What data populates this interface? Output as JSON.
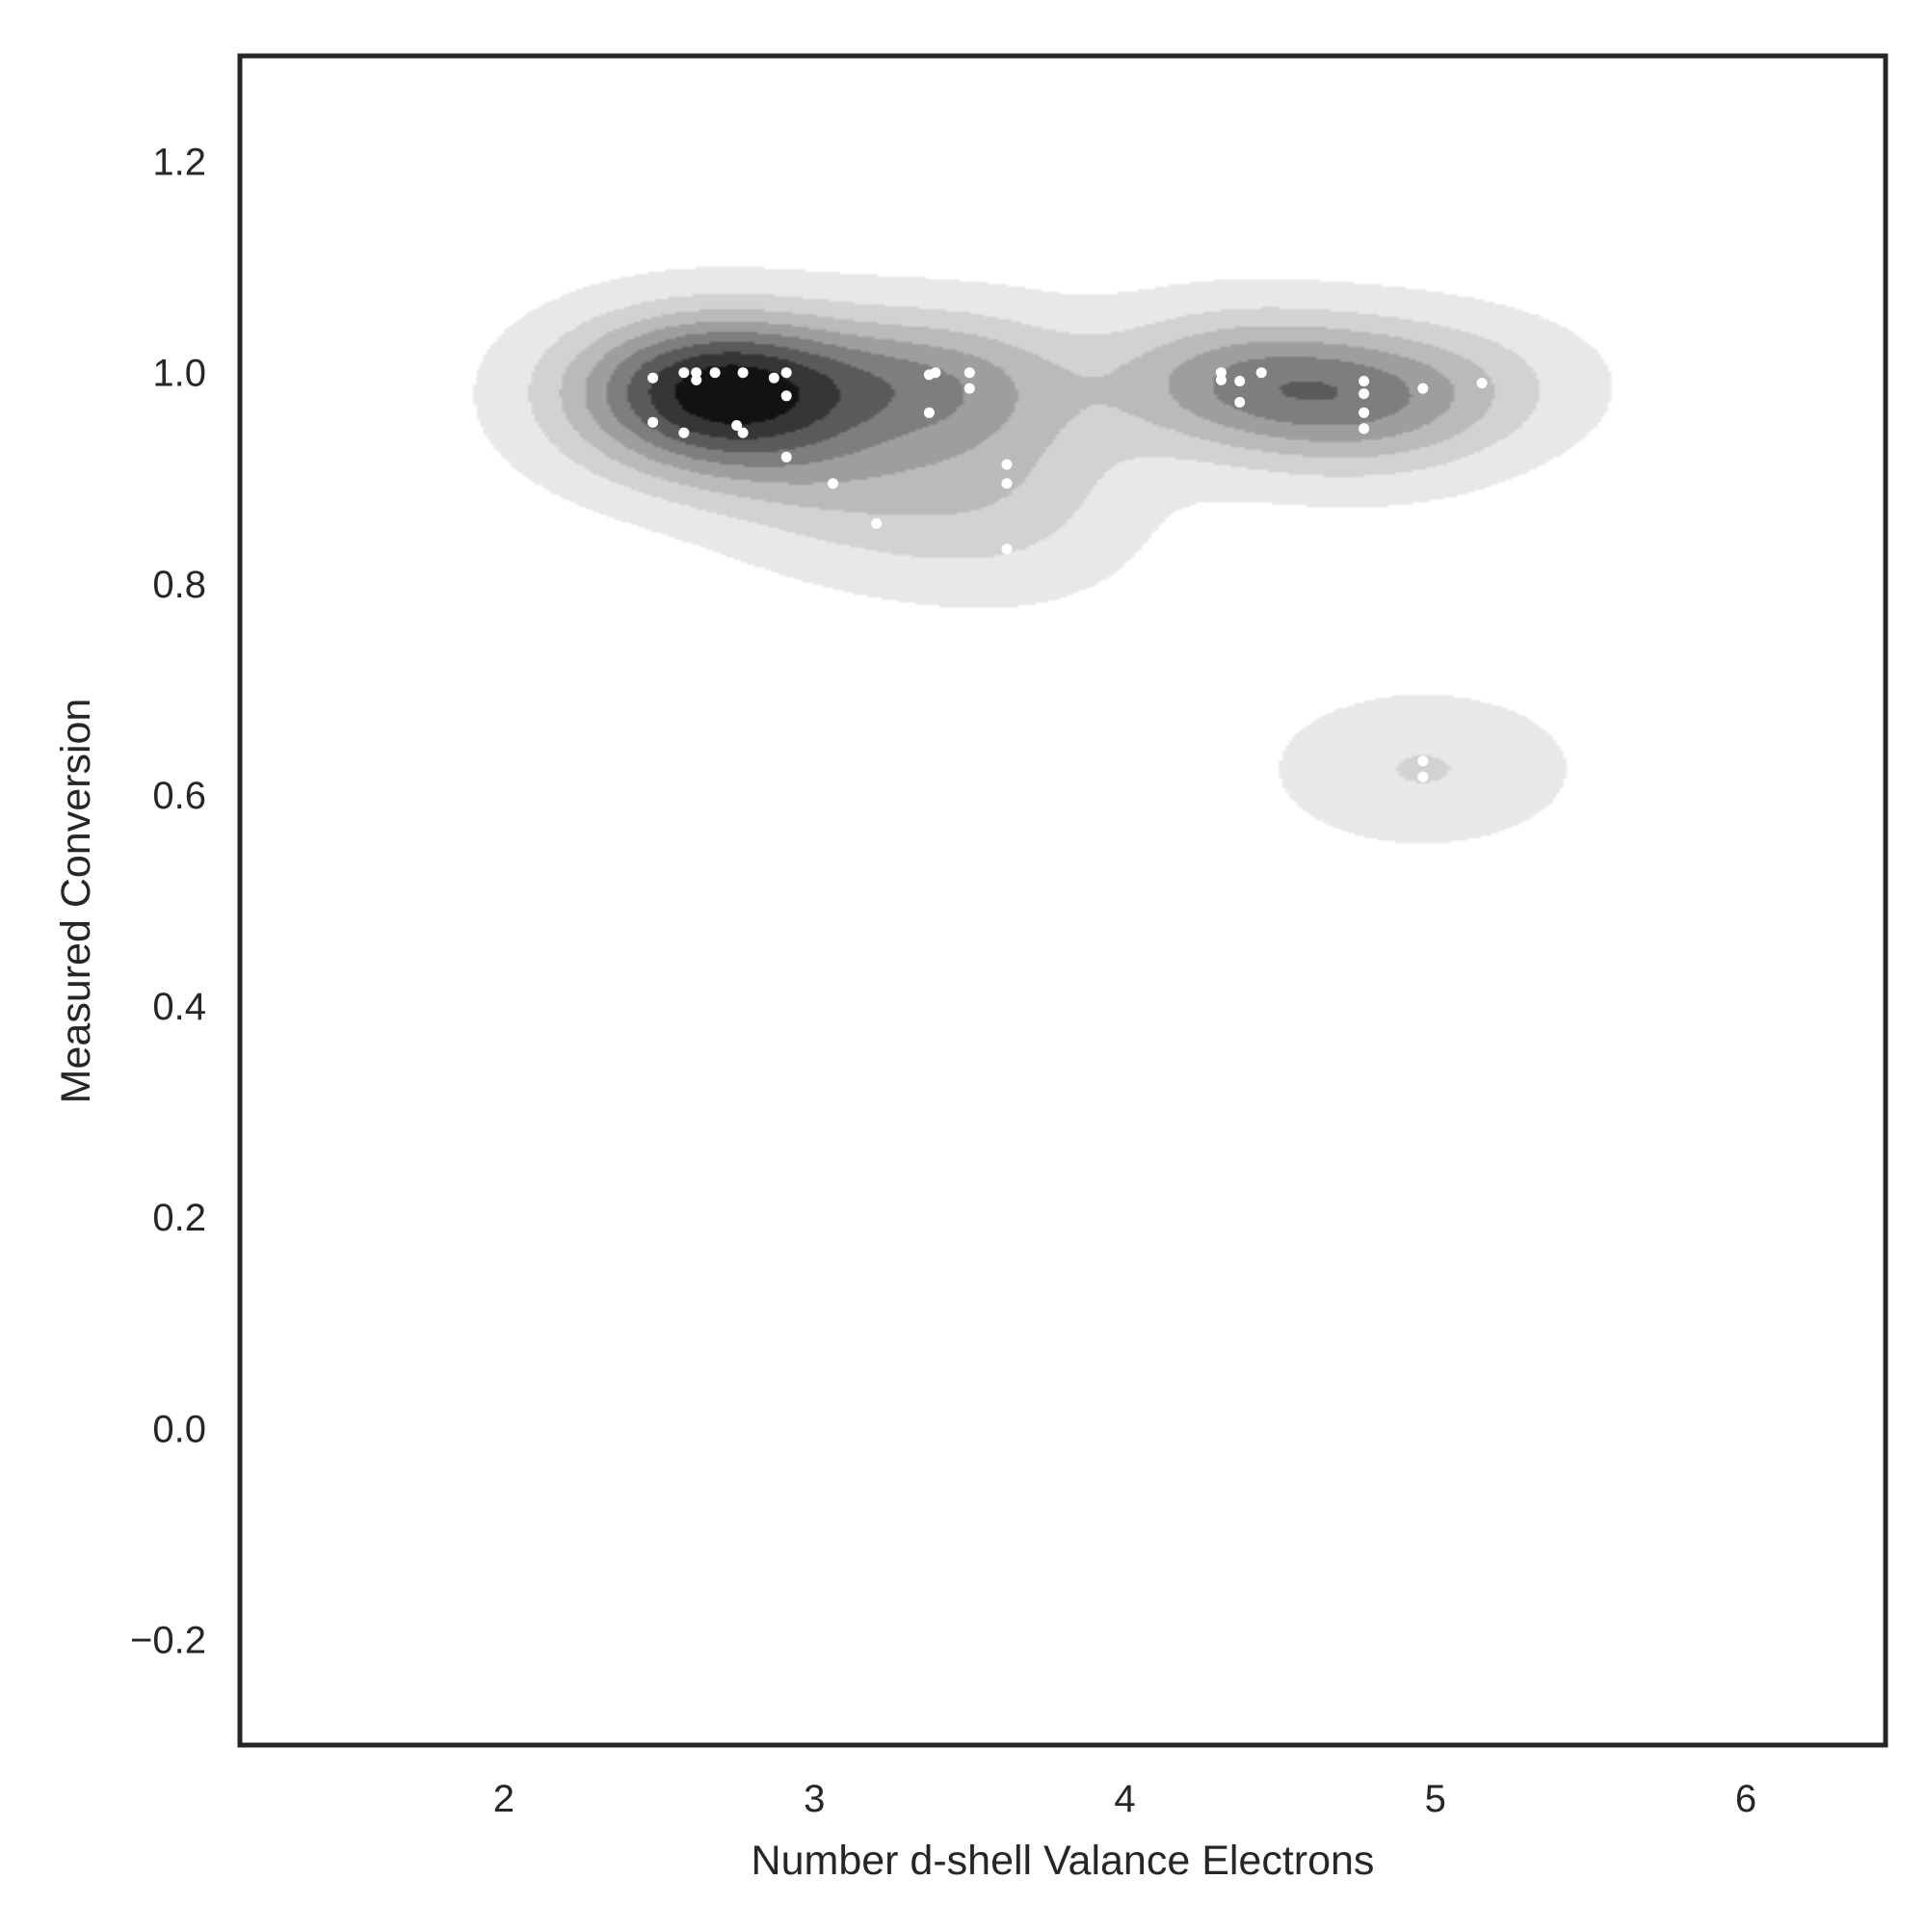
{
  "chart_data": {
    "type": "scatter",
    "subtype": "kde-density-contour-with-scatter-overlay",
    "title": "",
    "xlabel": "Number d-shell Valance Electrons",
    "ylabel": "Measured Conversion",
    "xlim": [
      1.15,
      6.45
    ],
    "ylim": [
      -0.3,
      1.3
    ],
    "x_ticks": [
      2,
      3,
      4,
      5,
      6
    ],
    "y_ticks": [
      -0.2,
      0.0,
      0.2,
      0.4,
      0.6,
      0.8,
      1.0,
      1.2
    ],
    "x_tick_labels": [
      "2",
      "3",
      "4",
      "5",
      "6"
    ],
    "y_tick_labels": [
      "−0.2",
      "0.0",
      "0.2",
      "0.4",
      "0.6",
      "0.8",
      "1.0",
      "1.2"
    ],
    "grid": false,
    "legend": "none",
    "colors": {
      "background": "#ffffff",
      "frame": "#262626",
      "points": "#ffffff",
      "density_levels": [
        "#e8e8e8",
        "#d2d2d2",
        "#bababa",
        "#9e9e9e",
        "#7e7e7e",
        "#5a5a5a",
        "#363636",
        "#121212"
      ]
    },
    "density_modes": [
      {
        "x": 2.85,
        "y": 0.98,
        "peak_level": 8
      },
      {
        "x": 4.55,
        "y": 0.985,
        "peak_level": 5
      },
      {
        "x": 4.9,
        "y": 0.61,
        "peak_level": 1
      }
    ],
    "series": [
      {
        "points": [
          {
            "x": 2.48,
            "y": 0.995
          },
          {
            "x": 2.58,
            "y": 1.0
          },
          {
            "x": 2.62,
            "y": 1.0
          },
          {
            "x": 2.62,
            "y": 0.993
          },
          {
            "x": 2.68,
            "y": 1.0
          },
          {
            "x": 2.77,
            "y": 1.0
          },
          {
            "x": 2.87,
            "y": 0.995
          },
          {
            "x": 2.91,
            "y": 1.0
          },
          {
            "x": 2.91,
            "y": 0.978
          },
          {
            "x": 2.48,
            "y": 0.953
          },
          {
            "x": 2.58,
            "y": 0.943
          },
          {
            "x": 2.75,
            "y": 0.95
          },
          {
            "x": 2.77,
            "y": 0.943
          },
          {
            "x": 2.91,
            "y": 0.92
          },
          {
            "x": 3.06,
            "y": 0.895
          },
          {
            "x": 3.2,
            "y": 0.857
          },
          {
            "x": 3.37,
            "y": 0.998
          },
          {
            "x": 3.39,
            "y": 1.0
          },
          {
            "x": 3.5,
            "y": 1.0
          },
          {
            "x": 3.5,
            "y": 0.985
          },
          {
            "x": 3.37,
            "y": 0.962
          },
          {
            "x": 3.62,
            "y": 0.913
          },
          {
            "x": 3.62,
            "y": 0.895
          },
          {
            "x": 3.62,
            "y": 0.833
          },
          {
            "x": 4.31,
            "y": 1.0
          },
          {
            "x": 4.31,
            "y": 0.993
          },
          {
            "x": 4.37,
            "y": 0.992
          },
          {
            "x": 4.44,
            "y": 1.0
          },
          {
            "x": 4.37,
            "y": 0.972
          },
          {
            "x": 4.77,
            "y": 0.992
          },
          {
            "x": 4.77,
            "y": 0.98
          },
          {
            "x": 4.77,
            "y": 0.962
          },
          {
            "x": 4.77,
            "y": 0.947
          },
          {
            "x": 4.96,
            "y": 0.985
          },
          {
            "x": 5.15,
            "y": 0.99
          },
          {
            "x": 4.96,
            "y": 0.632
          },
          {
            "x": 4.96,
            "y": 0.617
          }
        ]
      }
    ]
  }
}
